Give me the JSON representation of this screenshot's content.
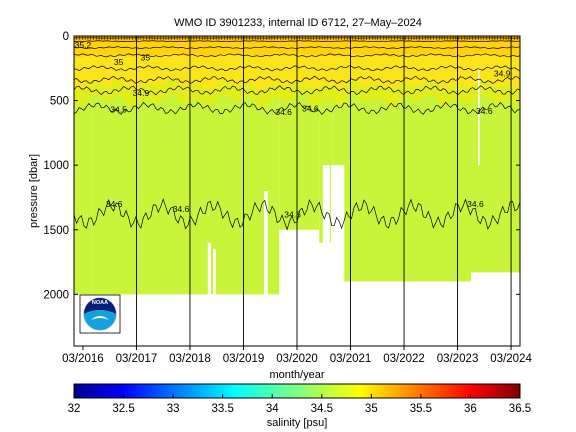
{
  "chart_data": {
    "type": "heatmap",
    "title": "WMO ID 3901233, internal ID 6712, 27–May–2024",
    "xlabel": "month/year",
    "ylabel": "pressure [dbar]",
    "x_range": [
      "2016-01",
      "2024-05"
    ],
    "ylim": [
      2400,
      0
    ],
    "y_reversed": true,
    "x_ticks": [
      "03/2016",
      "03/2017",
      "03/2018",
      "03/2019",
      "03/2020",
      "03/2021",
      "03/2022",
      "03/2023",
      "03/2024"
    ],
    "y_ticks": [
      0,
      500,
      1000,
      1500,
      2000
    ],
    "colorbar": {
      "label": "salinity [psu]",
      "min": 32,
      "max": 36.5,
      "ticks": [
        "32",
        "32.5",
        "33",
        "33.5",
        "34",
        "34.5",
        "35",
        "35.5",
        "36",
        "36.5"
      ]
    },
    "contour_labels": [
      {
        "text": "34.6",
        "date": "2016-10",
        "pressure": 1300
      },
      {
        "text": "34.6",
        "date": "2018-01",
        "pressure": 1340
      },
      {
        "text": "34.6",
        "date": "2020-02",
        "pressure": 1380
      },
      {
        "text": "34.6",
        "date": "2023-07",
        "pressure": 1300
      },
      {
        "text": "34.6",
        "date": "2019-12",
        "pressure": 590
      },
      {
        "text": "34.6",
        "date": "2020-06",
        "pressure": 560
      },
      {
        "text": "34.6",
        "date": "2023-09",
        "pressure": 580
      },
      {
        "text": "34.5",
        "date": "2016-11",
        "pressure": 570
      },
      {
        "text": "34.9",
        "date": "2017-04",
        "pressure": 440
      },
      {
        "text": "34.9",
        "date": "2024-01",
        "pressure": 290
      },
      {
        "text": "35",
        "date": "2016-11",
        "pressure": 200
      },
      {
        "text": "35",
        "date": "2017-05",
        "pressure": 165
      },
      {
        "text": "35.2",
        "date": "2016-03",
        "pressure": 70
      }
    ],
    "sample_mask": [
      {
        "x_start": "2016-01",
        "x_end": "2016-05",
        "max_pressure": 2000
      },
      {
        "x_start": "2016-05",
        "x_end": "2019-11",
        "max_pressure": 2000
      },
      {
        "x_start": "2019-11",
        "x_end": "2020-08",
        "max_pressure": 1500
      },
      {
        "x_start": "2020-08",
        "x_end": "2020-11",
        "max_pressure": 1600
      },
      {
        "x_start": "2020-11",
        "x_end": "2023-06",
        "max_pressure": 1900
      },
      {
        "x_start": "2023-06",
        "x_end": "2024-05",
        "max_pressure": 1830
      }
    ],
    "colormap": [
      "#00008f",
      "#0000ff",
      "#0070ff",
      "#00dfff",
      "#5fffa0",
      "#cfff30",
      "#ffdf00",
      "#ff7000",
      "#ff0000",
      "#8f0000"
    ]
  },
  "logo_text": "NOAA"
}
